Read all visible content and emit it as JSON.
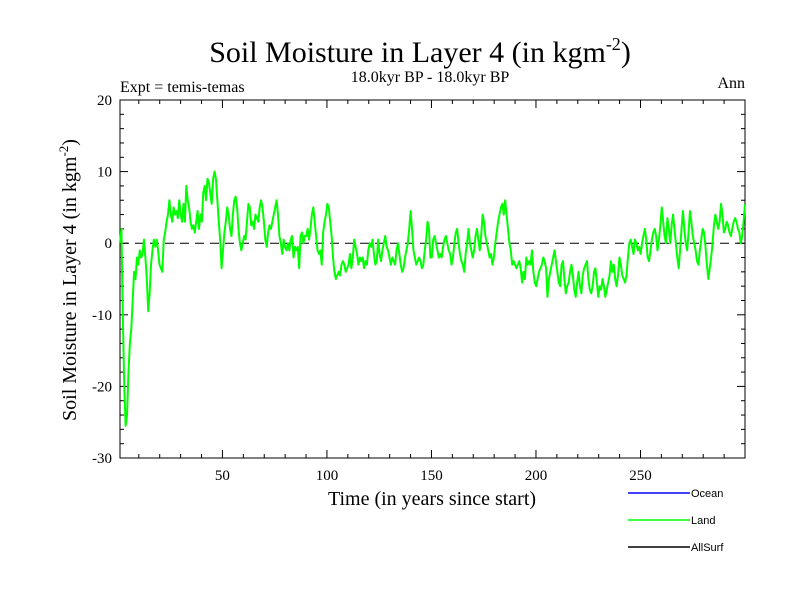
{
  "chart_data": {
    "type": "line",
    "title_main": "Soil Moisture in Layer 4 (in kgm",
    "title_sup": "-2",
    "title_close": ")",
    "subtitle": "18.0kyr BP - 18.0kyr BP",
    "expt_label": "Expt = temis-temas",
    "season_label": "Ann",
    "xlabel": "Time (in years since start)",
    "ylabel_main": "Soil Moisture in Layer 4 (in kgm",
    "ylabel_sup": "-2",
    "ylabel_close": ")",
    "xlim": [
      1,
      300
    ],
    "ylim": [
      -30,
      20
    ],
    "x_ticks": [
      50,
      100,
      150,
      200,
      250
    ],
    "y_ticks": [
      20,
      10,
      0,
      -10,
      -20,
      -30
    ],
    "zero_line": 0,
    "legend": [
      {
        "name": "Ocean",
        "color": "#0000ff"
      },
      {
        "name": "Land",
        "color": "#00ff00"
      },
      {
        "name": "AllSurf",
        "color": "#000000"
      }
    ],
    "series": [
      {
        "name": "Land",
        "color": "#00ff00",
        "values": [
          0.0,
          2.0,
          -10.0,
          -20.0,
          -25.5,
          -24.0,
          -18.0,
          -14.0,
          -12.0,
          -8.0,
          -4.0,
          -5.0,
          -2.0,
          -3.0,
          -1.0,
          -2.0,
          -1.5,
          0.5,
          -2.0,
          -5.0,
          -9.5,
          -7.0,
          -3.0,
          -1.0,
          0.5,
          -0.5,
          0.5,
          -1.0,
          -3.0,
          -3.5,
          -4.0,
          0.5,
          1.5,
          3.0,
          4.0,
          6.0,
          4.0,
          3.0,
          5.0,
          4.0,
          4.5,
          3.5,
          6.0,
          4.0,
          3.0,
          5.5,
          3.0,
          8.0,
          6.0,
          5.0,
          3.0,
          2.0,
          2.5,
          1.5,
          3.0,
          4.5,
          2.0,
          4.0,
          3.0,
          7.0,
          8.0,
          6.0,
          9.0,
          8.5,
          7.0,
          5.5,
          9.0,
          10.0,
          9.0,
          6.0,
          3.0,
          0.5,
          -3.5,
          -1.0,
          1.5,
          3.0,
          5.0,
          4.0,
          2.0,
          1.0,
          4.0,
          6.0,
          6.5,
          5.0,
          2.0,
          0.0,
          -1.0,
          0.0,
          1.0,
          0.5,
          3.0,
          5.5,
          5.0,
          2.5,
          3.0,
          2.0,
          4.0,
          3.5,
          3.0,
          5.0,
          6.0,
          5.0,
          3.0,
          0.5,
          -0.5,
          1.5,
          2.5,
          2.0,
          3.0,
          4.0,
          5.0,
          6.0,
          4.0,
          1.0,
          0.0,
          -1.5,
          0.5,
          -0.5,
          -1.0,
          0.0,
          -1.0,
          0.5,
          1.0,
          -2.0,
          -0.5,
          -1.0,
          -0.5,
          -3.5,
          1.0,
          1.5,
          0.0,
          1.0,
          1.0,
          2.0,
          0.5,
          2.0,
          4.0,
          5.0,
          3.0,
          1.0,
          -1.0,
          -1.5,
          -1.0,
          -3.0,
          1.5,
          3.0,
          4.0,
          5.5,
          5.0,
          3.0,
          1.0,
          -2.0,
          -4.0,
          -5.0,
          -4.5,
          -4.0,
          -4.5,
          -3.0,
          -2.5,
          -3.0,
          -4.0,
          -3.5,
          -3.0,
          -1.5,
          -3.5,
          -2.0,
          0.5,
          -0.5,
          -1.5,
          -3.0,
          -2.0,
          -2.5,
          -2.0,
          -3.5,
          -2.5,
          -3.0,
          -1.0,
          0.0,
          -0.5,
          0.5,
          -1.5,
          -3.0,
          -2.5,
          0.5,
          -1.5,
          -2.5,
          -1.0,
          0.0,
          1.0,
          -0.5,
          -1.0,
          -2.0,
          -3.0,
          -2.0,
          -2.5,
          -3.0,
          -1.0,
          0.0,
          -1.5,
          -3.0,
          -4.0,
          -3.5,
          -2.0,
          -1.0,
          0.0,
          2.0,
          4.5,
          2.0,
          -1.0,
          -2.0,
          -3.0,
          -2.5,
          -2.0,
          -2.5,
          -3.5,
          -3.0,
          -1.0,
          0.5,
          3.0,
          2.0,
          -2.0,
          -2.0,
          0.5,
          1.0,
          0.0,
          -1.0,
          -2.0,
          -1.5,
          -2.0,
          -0.5,
          0.5,
          1.0,
          0.0,
          -1.0,
          -1.5,
          -3.0,
          -2.0,
          0.0,
          1.5,
          2.0,
          0.0,
          -1.5,
          -2.5,
          -3.0,
          -4.0,
          -1.5,
          0.0,
          2.0,
          0.0,
          -1.0,
          -2.0,
          -1.0,
          1.0,
          2.0,
          0.5,
          -1.0,
          1.0,
          4.0,
          3.0,
          1.0,
          0.0,
          -1.0,
          -2.0,
          -1.5,
          -3.0,
          -2.0,
          0.0,
          1.5,
          3.0,
          4.0,
          5.0,
          5.5,
          4.0,
          6.0,
          4.0,
          2.0,
          0.0,
          -1.0,
          -3.0,
          -2.5,
          -3.0,
          -3.5,
          -3.0,
          -2.5,
          -3.5,
          -5.5,
          -4.0,
          -5.0,
          -2.0,
          -3.0,
          -2.5,
          -3.0,
          -1.0,
          -4.0,
          -5.5,
          -6.0,
          -5.0,
          -4.0,
          -3.5,
          -3.0,
          -2.0,
          -2.5,
          -3.5,
          -7.5,
          -5.0,
          -4.0,
          -3.0,
          -2.0,
          -1.0,
          -2.5,
          -4.0,
          -5.5,
          -6.0,
          -3.0,
          -2.5,
          -5.0,
          -7.0,
          -6.0,
          -5.5,
          -4.0,
          -3.0,
          -4.5,
          -6.5,
          -7.5,
          -5.5,
          -4.0,
          -6.0,
          -7.0,
          -4.5,
          -3.5,
          -3.0,
          -2.5,
          -5.0,
          -6.5,
          -7.0,
          -6.0,
          -4.0,
          -3.5,
          -5.5,
          -7.5,
          -6.0,
          -6.5,
          -5.0,
          -6.0,
          -7.5,
          -6.5,
          -5.5,
          -4.5,
          -2.5,
          -4.0,
          -3.0,
          -5.0,
          -6.0,
          -4.5,
          -2.0,
          -3.0,
          -4.5,
          -5.0,
          -5.5,
          -4.5,
          -2.0,
          0.0,
          0.5,
          -0.5,
          -1.5,
          0.5,
          0.0,
          -1.0,
          -0.5,
          -1.5,
          0.0,
          1.0,
          2.0,
          0.5,
          -2.0,
          -2.5,
          -1.0,
          0.5,
          1.5,
          2.0,
          1.0,
          -1.0,
          0.5,
          2.5,
          5.0,
          3.0,
          1.0,
          0.0,
          3.5,
          2.0,
          0.0,
          2.5,
          4.0,
          2.0,
          0.0,
          -2.0,
          -3.5,
          -1.0,
          2.0,
          4.5,
          2.0,
          0.0,
          -1.0,
          1.5,
          4.5,
          3.0,
          1.0,
          0.0,
          -1.0,
          -2.5,
          -3.0,
          -1.0,
          0.5,
          2.0,
          1.5,
          -0.5,
          -3.0,
          -5.0,
          -3.5,
          -2.0,
          0.0,
          2.5,
          4.0,
          3.0,
          2.0,
          3.0,
          5.5,
          4.0,
          1.5,
          2.0,
          3.0,
          2.5,
          1.5,
          1.0,
          2.0,
          3.0,
          3.5,
          3.0,
          2.0,
          1.5,
          0.0,
          1.0,
          3.0,
          5.5
        ]
      }
    ]
  }
}
